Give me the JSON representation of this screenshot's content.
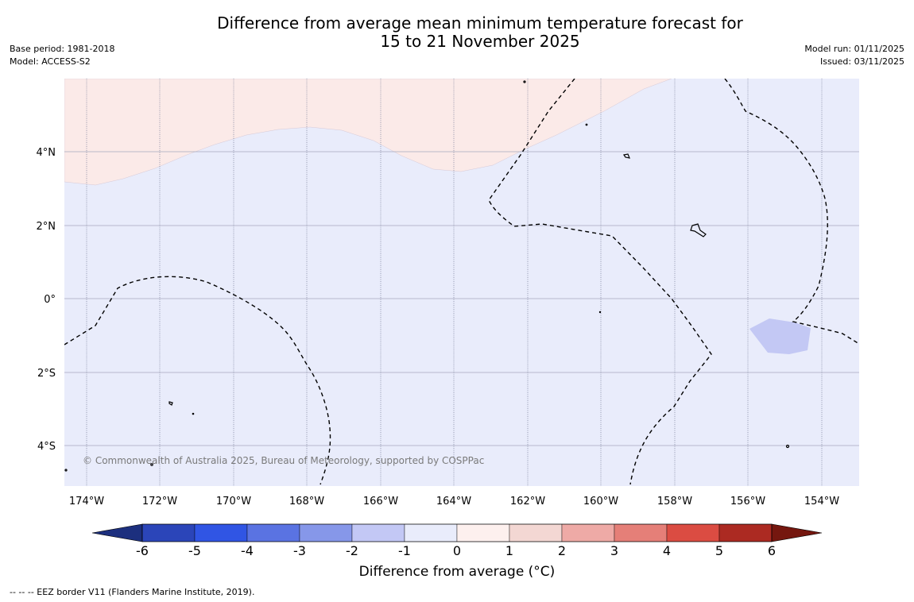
{
  "title": {
    "line1": "Difference from average mean minimum temperature forecast for",
    "line2": "15 to 21 November 2025"
  },
  "meta_left": {
    "base_period": "Base period: 1981-2018",
    "model": "Model: ACCESS-S2"
  },
  "meta_right": {
    "model_run": "Model run: 01/11/2025",
    "issued": "Issued: 03/11/2025"
  },
  "map": {
    "copyright": "© Commonwealth of Australia 2025, Bureau of Meteorology, supported by COSPPac",
    "lat_labels": [
      "4°N",
      "2°N",
      "0°",
      "2°S",
      "4°S"
    ],
    "lon_labels": [
      "174°W",
      "172°W",
      "170°W",
      "168°W",
      "166°W",
      "164°W",
      "162°W",
      "160°W",
      "158°W",
      "156°W",
      "154°W"
    ],
    "colors": {
      "ocean_near_zero": "#e9ecfb",
      "warm_0_1": "#fbeae8",
      "cool_minus2_minus1": "#c3c8f4",
      "grid": "#9aa0b4",
      "eez": "#000000"
    }
  },
  "colorbar": {
    "label": "Difference from average (°C)",
    "ticks": [
      "-6",
      "-5",
      "-4",
      "-3",
      "-2",
      "-1",
      "0",
      "1",
      "2",
      "3",
      "4",
      "5",
      "6"
    ],
    "colors": [
      "#1c2f7e",
      "#2b45b9",
      "#3055e4",
      "#5a73e2",
      "#8697e9",
      "#c3c8f5",
      "#e9ecfb",
      "#fdf0ee",
      "#f3d7d3",
      "#eeaaa6",
      "#e57f78",
      "#db4c42",
      "#ac2a22",
      "#75170f"
    ]
  },
  "footer": "--  --  -- EEZ border V11 (Flanders Marine Institute, 2019)."
}
